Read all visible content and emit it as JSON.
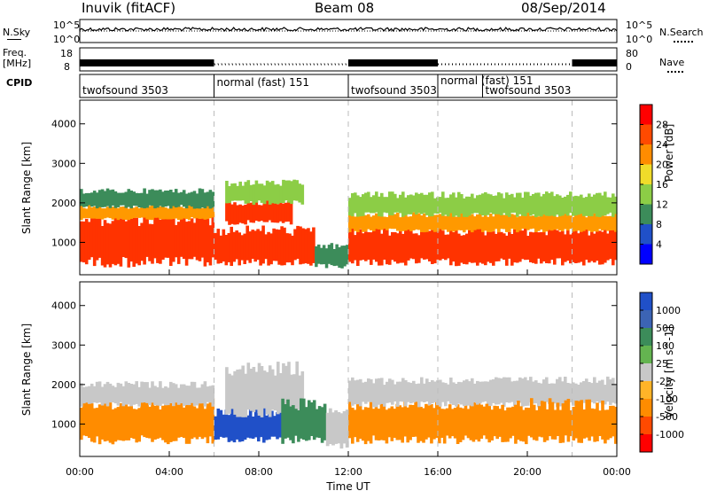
{
  "header": {
    "station": "Inuvik (fitACF)",
    "beam": "Beam 08",
    "date": "08/Sep/2014"
  },
  "top_panels": {
    "nsky_label": "N.Sky",
    "nsky_ticks": [
      "10^5",
      "10^0"
    ],
    "nsearch_label": "N.Search",
    "nsearch_ticks": [
      "10^5",
      "10^0"
    ],
    "freq_label": "Freq.",
    "freq_unit": "[MHz]",
    "freq_ticks": [
      "18",
      "8"
    ],
    "nave_label": "Nave",
    "nave_ticks": [
      "80",
      "0"
    ],
    "cpid_label": "CPID"
  },
  "cpid_segments": [
    {
      "label": "twofsound 3503",
      "start_h": 0,
      "end_h": 6
    },
    {
      "label": "normal (fast) 151",
      "start_h": 6,
      "end_h": 12
    },
    {
      "label": "twofsound 3503",
      "start_h": 12,
      "end_h": 16
    },
    {
      "label": "normal (fast) 151",
      "start_h": 16,
      "end_h": 18.5
    },
    {
      "label": "twofsound 3503",
      "start_h": 18,
      "end_h": 22
    }
  ],
  "x_axis": {
    "label": "Time UT",
    "ticks": [
      "00:00",
      "04:00",
      "08:00",
      "12:00",
      "16:00",
      "20:00",
      "00:00"
    ]
  },
  "chart_data": [
    {
      "type": "heatmap",
      "name": "power",
      "ylabel": "Slant Range [km]",
      "xlabel": "Time UT",
      "xlim": [
        0,
        24
      ],
      "ylim": [
        180,
        4600
      ],
      "yticks": [
        "4000",
        "3000",
        "2000",
        "1000"
      ],
      "ytick_values": [
        4000,
        3000,
        2000,
        1000
      ],
      "colorbar": {
        "label": "Power [dB]",
        "ticks": [
          "28",
          "24",
          "20",
          "16",
          "12",
          "8",
          "4"
        ],
        "colors": [
          "#ff0000",
          "#ff4a00",
          "#ff8c00",
          "#f0dc2a",
          "#8ccd46",
          "#3c8c5a",
          "#2050c8",
          "#0000ff"
        ]
      },
      "regions": [
        {
          "x": [
            0,
            6
          ],
          "y": [
            500,
            1600
          ],
          "color": "#ff3300"
        },
        {
          "x": [
            0,
            6
          ],
          "y": [
            1600,
            1900
          ],
          "color": "#ff9900"
        },
        {
          "x": [
            0,
            6
          ],
          "y": [
            1900,
            2300
          ],
          "color": "#3c8c5a"
        },
        {
          "x": [
            6,
            10.5
          ],
          "y": [
            500,
            1300
          ],
          "color": "#ff3300"
        },
        {
          "x": [
            6.5,
            9.5
          ],
          "y": [
            1500,
            2000
          ],
          "color": "#ff3300"
        },
        {
          "x": [
            6.5,
            10
          ],
          "y": [
            2000,
            2500
          ],
          "color": "#8ccd46"
        },
        {
          "x": [
            10.5,
            12
          ],
          "y": [
            400,
            900
          ],
          "color": "#3c8c5a"
        },
        {
          "x": [
            12,
            24
          ],
          "y": [
            500,
            1300
          ],
          "color": "#ff3300"
        },
        {
          "x": [
            12,
            24
          ],
          "y": [
            1300,
            1700
          ],
          "color": "#ff9900"
        },
        {
          "x": [
            12,
            24
          ],
          "y": [
            1700,
            2200
          ],
          "color": "#8ccd46"
        }
      ]
    },
    {
      "type": "heatmap",
      "name": "velocity",
      "ylabel": "Slant Range [km]",
      "xlabel": "Time UT",
      "xlim": [
        0,
        24
      ],
      "ylim": [
        180,
        4600
      ],
      "yticks": [
        "4000",
        "3000",
        "2000",
        "1000"
      ],
      "ytick_values": [
        4000,
        3000,
        2000,
        1000
      ],
      "colorbar": {
        "label": "Velocity [m s^-1]",
        "ticks": [
          "1000",
          "500",
          "100",
          "25",
          "-25",
          "-100",
          "-500",
          "-1000"
        ],
        "colors": [
          "#2050c8",
          "#3c64b4",
          "#3c8c5a",
          "#64b450",
          "#c8c8c8",
          "#ffb428",
          "#ff8c00",
          "#ff4a00",
          "#ff0000"
        ]
      },
      "regions": [
        {
          "x": [
            0,
            6
          ],
          "y": [
            600,
            1500
          ],
          "color": "#ff8c00"
        },
        {
          "x": [
            0,
            6
          ],
          "y": [
            1500,
            2000
          ],
          "color": "#c8c8c8"
        },
        {
          "x": [
            6,
            9
          ],
          "y": [
            600,
            1300
          ],
          "color": "#2050c8"
        },
        {
          "x": [
            6.5,
            10
          ],
          "y": [
            1300,
            2400
          ],
          "color": "#c8c8c8"
        },
        {
          "x": [
            9,
            11
          ],
          "y": [
            600,
            1500
          ],
          "color": "#3c8c5a"
        },
        {
          "x": [
            11,
            12
          ],
          "y": [
            400,
            1300
          ],
          "color": "#c8c8c8"
        },
        {
          "x": [
            12,
            18
          ],
          "y": [
            600,
            1500
          ],
          "color": "#ff8c00"
        },
        {
          "x": [
            12,
            24
          ],
          "y": [
            1500,
            2100
          ],
          "color": "#c8c8c8"
        },
        {
          "x": [
            18,
            24
          ],
          "y": [
            600,
            1500
          ],
          "color": "#ff8c00"
        }
      ]
    }
  ]
}
